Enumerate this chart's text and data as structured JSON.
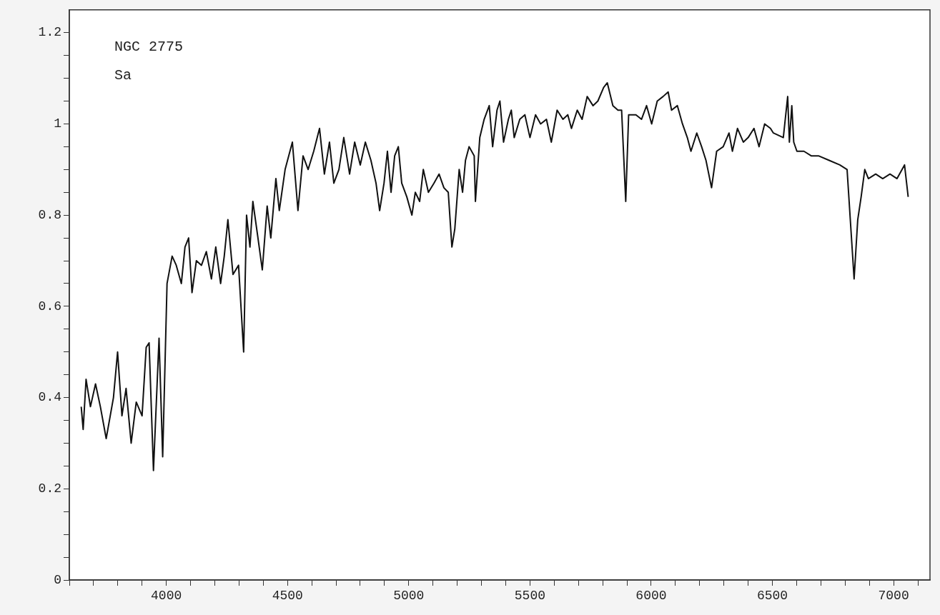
{
  "chart_data": {
    "type": "line",
    "annotations": [
      "NGC 2775",
      "Sa"
    ],
    "xlim": [
      3600,
      7150
    ],
    "ylim": [
      0,
      1.25
    ],
    "xticks": [
      {
        "value": 3600,
        "label": null
      },
      {
        "value": 3700,
        "label": null
      },
      {
        "value": 3800,
        "label": null
      },
      {
        "value": 3900,
        "label": null
      },
      4000,
      {
        "value": 4100,
        "label": null
      },
      {
        "value": 4200,
        "label": null
      },
      {
        "value": 4300,
        "label": null
      },
      {
        "value": 4400,
        "label": null
      },
      4500,
      {
        "value": 4600,
        "label": null
      },
      {
        "value": 4700,
        "label": null
      },
      {
        "value": 4800,
        "label": null
      },
      {
        "value": 4900,
        "label": null
      },
      5000,
      {
        "value": 5100,
        "label": null
      },
      {
        "value": 5200,
        "label": null
      },
      {
        "value": 5300,
        "label": null
      },
      {
        "value": 5400,
        "label": null
      },
      5500,
      {
        "value": 5600,
        "label": null
      },
      {
        "value": 5700,
        "label": null
      },
      {
        "value": 5800,
        "label": null
      },
      {
        "value": 5900,
        "label": null
      },
      6000,
      {
        "value": 6100,
        "label": null
      },
      {
        "value": 6200,
        "label": null
      },
      {
        "value": 6300,
        "label": null
      },
      {
        "value": 6400,
        "label": null
      },
      6500,
      {
        "value": 6600,
        "label": null
      },
      {
        "value": 6700,
        "label": null
      },
      {
        "value": 6800,
        "label": null
      },
      {
        "value": 6900,
        "label": null
      },
      7000,
      {
        "value": 7100,
        "label": null
      }
    ],
    "yticks": [
      0,
      {
        "value": 0.05,
        "label": null
      },
      {
        "value": 0.1,
        "label": null
      },
      {
        "value": 0.15,
        "label": null
      },
      0.2,
      {
        "value": 0.25,
        "label": null
      },
      {
        "value": 0.3,
        "label": null
      },
      {
        "value": 0.35,
        "label": null
      },
      0.4,
      {
        "value": 0.45,
        "label": null
      },
      {
        "value": 0.5,
        "label": null
      },
      {
        "value": 0.55,
        "label": null
      },
      0.6,
      {
        "value": 0.65,
        "label": null
      },
      {
        "value": 0.7,
        "label": null
      },
      {
        "value": 0.75,
        "label": null
      },
      0.8,
      {
        "value": 0.85,
        "label": null
      },
      {
        "value": 0.9,
        "label": null
      },
      {
        "value": 0.95,
        "label": null
      },
      1,
      {
        "value": 1.05,
        "label": null
      },
      {
        "value": 1.1,
        "label": null
      },
      {
        "value": 1.15,
        "label": null
      },
      1.2
    ],
    "marker": "none",
    "line_style": "solid",
    "series": [
      {
        "color": "#111111",
        "x": [
          3649,
          3657,
          3669,
          3687,
          3708,
          3728,
          3752,
          3782,
          3799,
          3817,
          3834,
          3855,
          3876,
          3900,
          3917,
          3929,
          3947,
          3970,
          3985,
          4003,
          4024,
          4041,
          4062,
          4077,
          4092,
          4106,
          4124,
          4145,
          4165,
          4186,
          4204,
          4224,
          4239,
          4254,
          4275,
          4298,
          4319,
          4331,
          4345,
          4357,
          4378,
          4396,
          4416,
          4431,
          4452,
          4466,
          4490,
          4520,
          4543,
          4564,
          4585,
          4608,
          4632,
          4652,
          4673,
          4691,
          4712,
          4732,
          4756,
          4777,
          4800,
          4821,
          4844,
          4865,
          4880,
          4898,
          4912,
          4927,
          4942,
          4957,
          4971,
          4992,
          5013,
          5027,
          5045,
          5060,
          5081,
          5104,
          5125,
          5145,
          5163,
          5178,
          5190,
          5208,
          5222,
          5234,
          5249,
          5270,
          5275,
          5293,
          5311,
          5332,
          5346,
          5364,
          5376,
          5391,
          5411,
          5423,
          5435,
          5458,
          5479,
          5500,
          5523,
          5544,
          5568,
          5588,
          5612,
          5636,
          5656,
          5671,
          5695,
          5715,
          5736,
          5760,
          5780,
          5804,
          5819,
          5842,
          5863,
          5878,
          5895,
          5907,
          5937,
          5960,
          5981,
          6002,
          6025,
          6049,
          6070,
          6084,
          6108,
          6129,
          6149,
          6164,
          6188,
          6208,
          6226,
          6249,
          6270,
          6297,
          6321,
          6335,
          6356,
          6380,
          6400,
          6424,
          6445,
          6468,
          6492,
          6504,
          6545,
          6563,
          6570,
          6580,
          6588,
          6601,
          6630,
          6660,
          6690,
          6734,
          6778,
          6808,
          6837,
          6852,
          6866,
          6881,
          6896,
          6926,
          6955,
          6985,
          7014,
          7045,
          7060
        ],
        "values": [
          0.38,
          0.33,
          0.44,
          0.38,
          0.43,
          0.38,
          0.31,
          0.4,
          0.5,
          0.36,
          0.42,
          0.3,
          0.39,
          0.36,
          0.51,
          0.52,
          0.24,
          0.53,
          0.27,
          0.65,
          0.71,
          0.69,
          0.65,
          0.73,
          0.75,
          0.63,
          0.7,
          0.69,
          0.72,
          0.66,
          0.73,
          0.65,
          0.71,
          0.79,
          0.67,
          0.69,
          0.5,
          0.8,
          0.73,
          0.83,
          0.75,
          0.68,
          0.82,
          0.75,
          0.88,
          0.81,
          0.9,
          0.96,
          0.81,
          0.93,
          0.9,
          0.94,
          0.99,
          0.89,
          0.96,
          0.87,
          0.9,
          0.97,
          0.89,
          0.96,
          0.91,
          0.96,
          0.92,
          0.87,
          0.81,
          0.87,
          0.94,
          0.85,
          0.93,
          0.95,
          0.87,
          0.84,
          0.8,
          0.85,
          0.83,
          0.9,
          0.85,
          0.87,
          0.89,
          0.86,
          0.85,
          0.73,
          0.77,
          0.9,
          0.85,
          0.92,
          0.95,
          0.93,
          0.83,
          0.97,
          1.01,
          1.04,
          0.95,
          1.03,
          1.05,
          0.96,
          1.01,
          1.03,
          0.97,
          1.01,
          1.02,
          0.97,
          1.02,
          1,
          1.01,
          0.96,
          1.03,
          1.01,
          1.02,
          0.99,
          1.03,
          1.01,
          1.06,
          1.04,
          1.05,
          1.08,
          1.09,
          1.04,
          1.03,
          1.03,
          0.83,
          1.02,
          1.02,
          1.01,
          1.04,
          1,
          1.05,
          1.06,
          1.07,
          1.03,
          1.04,
          1,
          0.97,
          0.94,
          0.98,
          0.95,
          0.92,
          0.86,
          0.94,
          0.95,
          0.98,
          0.94,
          0.99,
          0.96,
          0.97,
          0.99,
          0.95,
          1,
          0.99,
          0.98,
          0.97,
          1.06,
          0.96,
          1.04,
          0.96,
          0.94,
          0.94,
          0.93,
          0.93,
          0.92,
          0.91,
          0.9,
          0.66,
          0.79,
          0.84,
          0.9,
          0.88,
          0.89,
          0.88,
          0.89,
          0.88,
          0.91,
          0.84
        ]
      }
    ]
  }
}
